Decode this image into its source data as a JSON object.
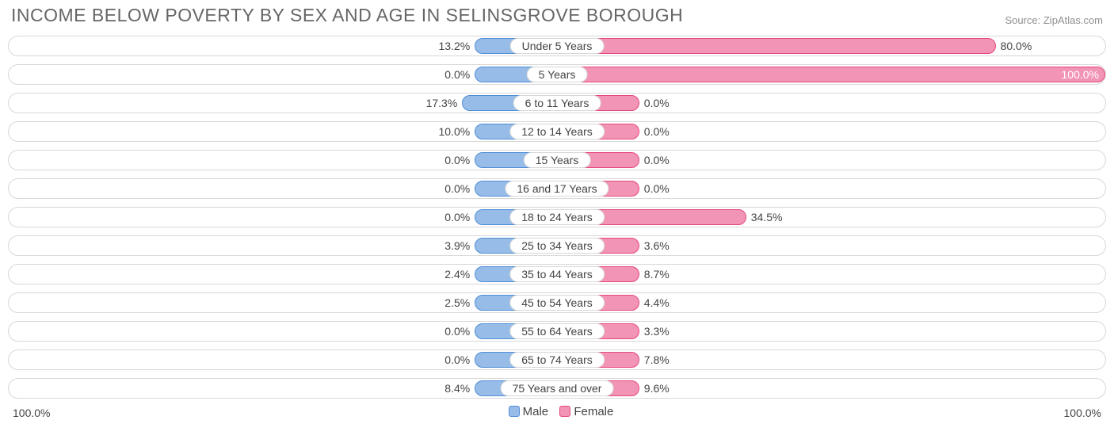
{
  "title": "INCOME BELOW POVERTY BY SEX AND AGE IN SELINSGROVE BOROUGH",
  "source": "Source: ZipAtlas.com",
  "colors": {
    "male_fill": "#97bce8",
    "male_stroke": "#4f8ed6",
    "female_fill": "#f194b6",
    "female_stroke": "#e6487d",
    "row_border": "#d8d8d8",
    "background": "#ffffff",
    "text": "#444444",
    "title_text": "#666666",
    "source_text": "#909090"
  },
  "chart": {
    "type": "diverging-bar",
    "min_bar_pct": 15,
    "xmax": 100.0,
    "axis_left": "100.0%",
    "axis_right": "100.0%",
    "categories": [
      {
        "label": "Under 5 Years",
        "male": 13.2,
        "female": 80.0
      },
      {
        "label": "5 Years",
        "male": 0.0,
        "female": 100.0
      },
      {
        "label": "6 to 11 Years",
        "male": 17.3,
        "female": 0.0
      },
      {
        "label": "12 to 14 Years",
        "male": 10.0,
        "female": 0.0
      },
      {
        "label": "15 Years",
        "male": 0.0,
        "female": 0.0
      },
      {
        "label": "16 and 17 Years",
        "male": 0.0,
        "female": 0.0
      },
      {
        "label": "18 to 24 Years",
        "male": 0.0,
        "female": 34.5
      },
      {
        "label": "25 to 34 Years",
        "male": 3.9,
        "female": 3.6
      },
      {
        "label": "35 to 44 Years",
        "male": 2.4,
        "female": 8.7
      },
      {
        "label": "45 to 54 Years",
        "male": 2.5,
        "female": 4.4
      },
      {
        "label": "55 to 64 Years",
        "male": 0.0,
        "female": 3.3
      },
      {
        "label": "65 to 74 Years",
        "male": 0.0,
        "female": 7.8
      },
      {
        "label": "75 Years and over",
        "male": 8.4,
        "female": 9.6
      }
    ]
  },
  "legend": {
    "male": "Male",
    "female": "Female"
  }
}
